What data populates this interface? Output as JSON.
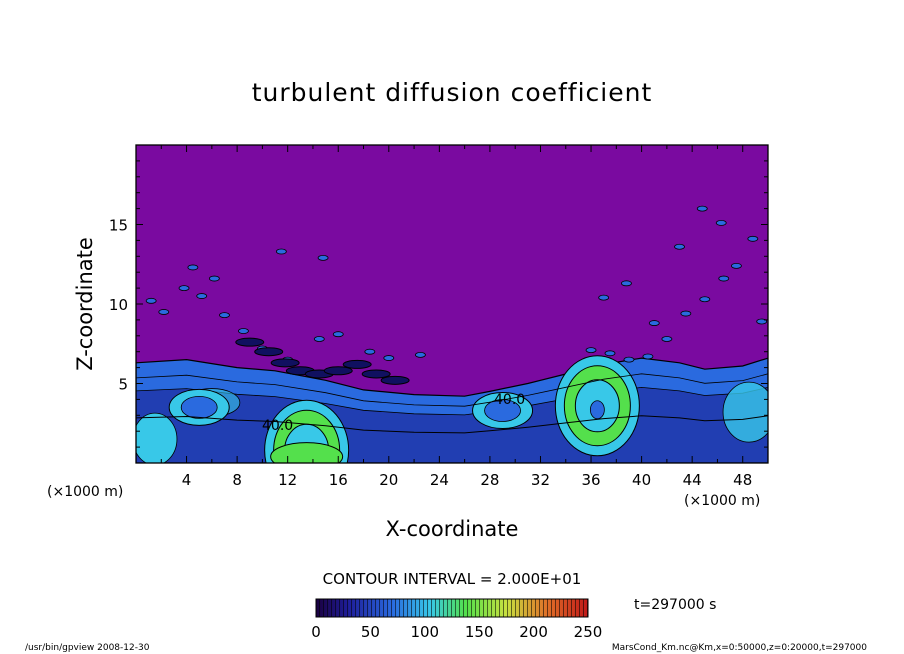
{
  "chart_data": {
    "type": "heatmap",
    "title": "turbulent diffusion coefficient",
    "xlabel": "X-coordinate",
    "ylabel": "Z-coordinate",
    "x_unit": "(×1000 m)",
    "y_unit": "(×1000 m)",
    "xlim": [
      0,
      50
    ],
    "ylim": [
      0,
      20
    ],
    "x_ticks": [
      "4",
      "8",
      "12",
      "16",
      "20",
      "24",
      "28",
      "32",
      "36",
      "40",
      "44",
      "48"
    ],
    "y_ticks": [
      "5",
      "10",
      "15"
    ],
    "contour_interval": "CONTOUR INTERVAL = 2.000E+01",
    "contour_labels": [
      "40.0",
      "40.0"
    ],
    "time_label": "t=297000 s",
    "colorbar": {
      "ticks": [
        "0",
        "50",
        "100",
        "150",
        "200",
        "250"
      ],
      "range": [
        0,
        250
      ]
    },
    "background_value": 0,
    "regions": [
      {
        "kind": "mixed_layer",
        "z_top_km": [
          6.3,
          6.5,
          6.0,
          5.8,
          5.2,
          4.6,
          4.3,
          4.2,
          4.5,
          5.0,
          5.6,
          6.2,
          6.6,
          6.3,
          5.9,
          6.1,
          6.6
        ],
        "x_km": [
          0,
          4,
          8,
          11,
          15,
          18,
          22,
          26,
          28,
          31,
          34,
          37,
          40,
          43,
          45,
          48,
          50
        ]
      },
      {
        "kind": "eddy",
        "x_km": 36.5,
        "z_km": 3.6,
        "max_value": 150
      },
      {
        "kind": "eddy",
        "x_km": 13.5,
        "z_km": 0.8,
        "max_value": 130
      },
      {
        "kind": "eddy",
        "x_km": 29,
        "z_km": 3.3,
        "max_value": 60
      },
      {
        "kind": "eddy",
        "x_km": 5,
        "z_km": 3.5,
        "max_value": 70
      }
    ]
  },
  "footer": {
    "left": "/usr/bin/gpview   2008-12-30",
    "right": "MarsCond_Km.nc@Km,x=0:50000,z=0:20000,t=297000"
  },
  "colors": {
    "background_field": "#7a0aa0",
    "low": "#1a1a8c",
    "mid": "#2a6adf",
    "cyan": "#38c8e8",
    "green": "#54e04c"
  }
}
